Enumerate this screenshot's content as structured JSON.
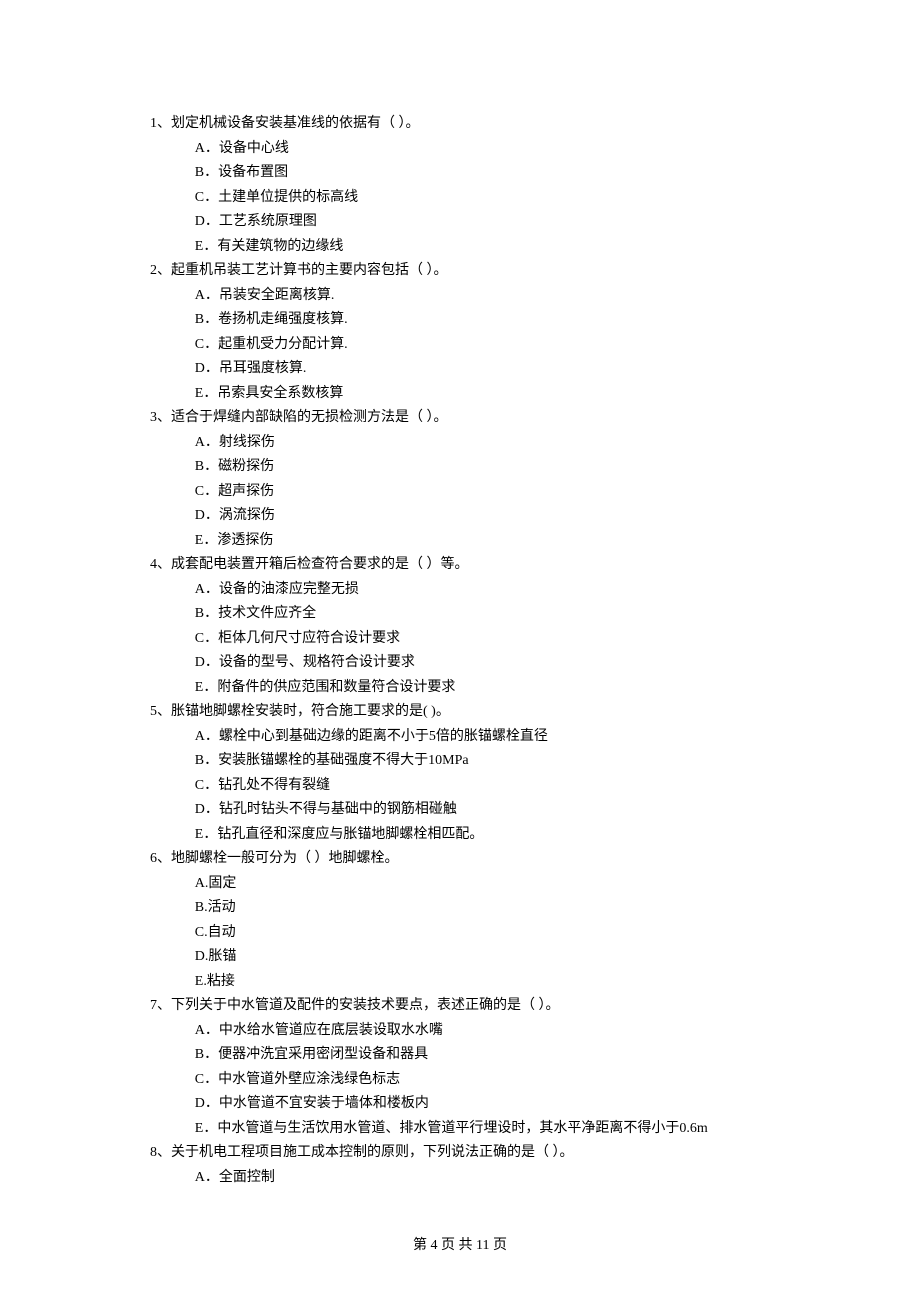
{
  "page": {
    "current": 4,
    "total": 11,
    "footer_template_prefix": "第 ",
    "footer_template_mid": " 页 共 ",
    "footer_template_suffix": " 页"
  },
  "font": {
    "body_size_pt": 10.5,
    "body_weight": "normal",
    "color": "#000000",
    "background": "#ffffff"
  },
  "questions": [
    {
      "number": "1、",
      "stem": "划定机械设备安装基准线的依据有（    ）。",
      "options": [
        {
          "label": "A．",
          "text": "设备中心线"
        },
        {
          "label": "B．",
          "text": "设备布置图"
        },
        {
          "label": "C．",
          "text": "土建单位提供的标高线"
        },
        {
          "label": "D．",
          "text": "工艺系统原理图"
        },
        {
          "label": "E．",
          "text": "有关建筑物的边缘线"
        }
      ]
    },
    {
      "number": "2、",
      "stem": "起重机吊装工艺计算书的主要内容包括（    ）。",
      "options": [
        {
          "label": "A．",
          "text": "吊装安全距离核算."
        },
        {
          "label": "B．",
          "text": "卷扬机走绳强度核算."
        },
        {
          "label": "C．",
          "text": "起重机受力分配计算."
        },
        {
          "label": "D．",
          "text": "吊耳强度核算."
        },
        {
          "label": "E．",
          "text": "吊索具安全系数核算"
        }
      ]
    },
    {
      "number": "3、",
      "stem": "适合于焊缝内部缺陷的无损检测方法是（    ）。",
      "options": [
        {
          "label": "A．",
          "text": "射线探伤"
        },
        {
          "label": "B．",
          "text": "磁粉探伤"
        },
        {
          "label": "C．",
          "text": "超声探伤"
        },
        {
          "label": "D．",
          "text": "涡流探伤"
        },
        {
          "label": "E．",
          "text": "渗透探伤"
        }
      ]
    },
    {
      "number": "4、",
      "stem": "成套配电装置开箱后检查符合要求的是（    ）等。",
      "options": [
        {
          "label": "A．",
          "text": "设备的油漆应完整无损"
        },
        {
          "label": "B．",
          "text": "技术文件应齐全"
        },
        {
          "label": "C．",
          "text": "柜体几何尺寸应符合设计要求"
        },
        {
          "label": "D．",
          "text": "设备的型号、规格符合设计要求"
        },
        {
          "label": "E．",
          "text": "附备件的供应范围和数量符合设计要求"
        }
      ]
    },
    {
      "number": "5、",
      "stem": "胀锚地脚螺栓安装时，符合施工要求的是(    )。",
      "options": [
        {
          "label": "A．",
          "text": "螺栓中心到基础边缘的距离不小于5倍的胀锚螺栓直径"
        },
        {
          "label": "B．",
          "text": "安装胀锚螺栓的基础强度不得大于10MPa"
        },
        {
          "label": "C．",
          "text": "钻孔处不得有裂缝"
        },
        {
          "label": "D．",
          "text": "钻孔时钻头不得与基础中的钢筋相碰触"
        },
        {
          "label": "E．",
          "text": "钻孔直径和深度应与胀锚地脚螺栓相匹配。"
        }
      ]
    },
    {
      "number": "6、",
      "stem": "地脚螺栓一般可分为（    ）地脚螺栓。",
      "options": [
        {
          "label": "A.",
          "text": "固定"
        },
        {
          "label": "B.",
          "text": "活动"
        },
        {
          "label": "C.",
          "text": "自动"
        },
        {
          "label": "D.",
          "text": "胀锚"
        },
        {
          "label": "E.",
          "text": "粘接"
        }
      ]
    },
    {
      "number": "7、",
      "stem": "下列关于中水管道及配件的安装技术要点，表述正确的是（    ）。",
      "options": [
        {
          "label": "A．",
          "text": "中水给水管道应在底层装设取水水嘴"
        },
        {
          "label": "B．",
          "text": "便器冲洗宜采用密闭型设备和器具"
        },
        {
          "label": "C．",
          "text": "中水管道外壁应涂浅绿色标志"
        },
        {
          "label": "D．",
          "text": "中水管道不宜安装于墙体和楼板内"
        },
        {
          "label": "E．",
          "text": "中水管道与生活饮用水管道、排水管道平行埋设时，其水平净距离不得小于0.6m"
        }
      ]
    },
    {
      "number": "8、",
      "stem": "关于机电工程项目施工成本控制的原则，下列说法正确的是（    ）。",
      "options": [
        {
          "label": "A．",
          "text": "全面控制"
        }
      ]
    }
  ]
}
